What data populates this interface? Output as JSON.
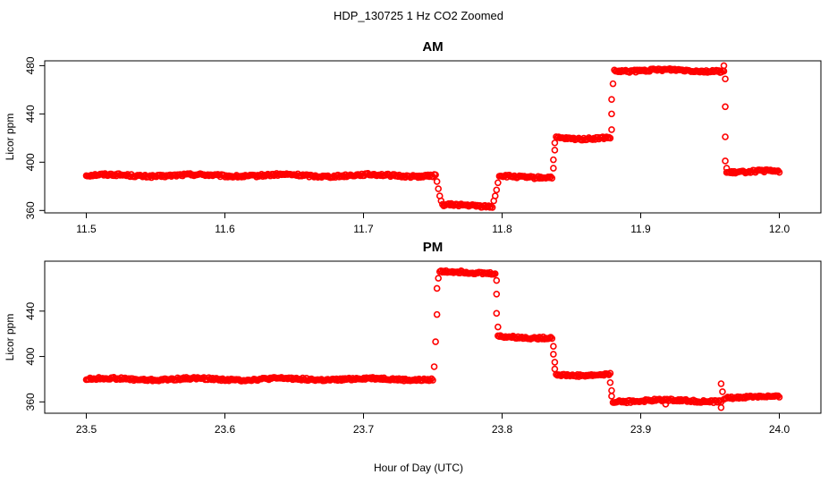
{
  "figure": {
    "suptitle": "HDP_130725  1 Hz CO2 Zoomed",
    "xlabel": "Hour of Day (UTC)",
    "marker_color": "#ff0000"
  },
  "chart_data": [
    {
      "type": "scatter",
      "title": "AM",
      "ylabel": "Licor ppm",
      "xlim": [
        11.47,
        12.03
      ],
      "ylim": [
        358,
        484
      ],
      "x_ticks": [
        11.5,
        11.6,
        11.7,
        11.8,
        11.9,
        12.0
      ],
      "x_tick_labels": [
        "11.5",
        "11.6",
        "11.7",
        "11.8",
        "11.9",
        "12.0"
      ],
      "y_ticks": [
        360,
        400,
        440,
        480
      ],
      "y_tick_labels": [
        "360",
        "400",
        "440",
        "480"
      ],
      "series": [
        {
          "segments": [
            {
              "x_start": 11.5,
              "x_end": 11.752,
              "y": 389
            },
            {
              "x_start": 11.757,
              "x_end": 11.793,
              "y": 364
            },
            {
              "x_start": 11.798,
              "x_end": 11.836,
              "y": 388
            },
            {
              "x_start": 11.839,
              "x_end": 11.878,
              "y": 420
            },
            {
              "x_start": 11.881,
              "x_end": 11.96,
              "y": 476
            },
            {
              "x_start": 11.962,
              "x_end": 12.0,
              "y": 392
            }
          ],
          "transition_points": [
            {
              "x": 11.753,
              "y": 384
            },
            {
              "x": 11.754,
              "y": 378
            },
            {
              "x": 11.755,
              "y": 372
            },
            {
              "x": 11.756,
              "y": 368
            },
            {
              "x": 11.794,
              "y": 368
            },
            {
              "x": 11.795,
              "y": 372
            },
            {
              "x": 11.796,
              "y": 377
            },
            {
              "x": 11.797,
              "y": 383
            },
            {
              "x": 11.837,
              "y": 395
            },
            {
              "x": 11.837,
              "y": 402
            },
            {
              "x": 11.838,
              "y": 410
            },
            {
              "x": 11.838,
              "y": 416
            },
            {
              "x": 11.879,
              "y": 427
            },
            {
              "x": 11.879,
              "y": 440
            },
            {
              "x": 11.879,
              "y": 452
            },
            {
              "x": 11.88,
              "y": 465
            },
            {
              "x": 11.96,
              "y": 480
            },
            {
              "x": 11.961,
              "y": 469
            },
            {
              "x": 11.961,
              "y": 446
            },
            {
              "x": 11.961,
              "y": 421
            },
            {
              "x": 11.961,
              "y": 401
            },
            {
              "x": 11.962,
              "y": 395
            }
          ]
        }
      ]
    },
    {
      "type": "scatter",
      "title": "PM",
      "ylabel": "Licor ppm",
      "xlim": [
        23.47,
        24.03
      ],
      "ylim": [
        350,
        484
      ],
      "x_ticks": [
        23.5,
        23.6,
        23.7,
        23.8,
        23.9,
        24.0
      ],
      "x_tick_labels": [
        "23.5",
        "23.6",
        "23.7",
        "23.8",
        "23.9",
        "24.0"
      ],
      "y_ticks": [
        360,
        400,
        440
      ],
      "y_tick_labels": [
        "360",
        "400",
        "440"
      ],
      "series": [
        {
          "segments": [
            {
              "x_start": 23.5,
              "x_end": 23.75,
              "y": 380
            },
            {
              "x_start": 23.755,
              "x_end": 23.795,
              "y": 474
            },
            {
              "x_start": 23.797,
              "x_end": 23.836,
              "y": 417
            },
            {
              "x_start": 23.839,
              "x_end": 23.878,
              "y": 384
            },
            {
              "x_start": 23.88,
              "x_end": 23.958,
              "y": 361
            },
            {
              "x_start": 23.96,
              "x_end": 24.0,
              "y": 364
            }
          ],
          "transition_points": [
            {
              "x": 23.751,
              "y": 391
            },
            {
              "x": 23.752,
              "y": 413
            },
            {
              "x": 23.753,
              "y": 437
            },
            {
              "x": 23.753,
              "y": 460
            },
            {
              "x": 23.754,
              "y": 469
            },
            {
              "x": 23.796,
              "y": 467
            },
            {
              "x": 23.796,
              "y": 455
            },
            {
              "x": 23.796,
              "y": 438
            },
            {
              "x": 23.797,
              "y": 426
            },
            {
              "x": 23.837,
              "y": 409
            },
            {
              "x": 23.837,
              "y": 402
            },
            {
              "x": 23.838,
              "y": 395
            },
            {
              "x": 23.838,
              "y": 389
            },
            {
              "x": 23.878,
              "y": 377
            },
            {
              "x": 23.879,
              "y": 370
            },
            {
              "x": 23.879,
              "y": 365
            },
            {
              "x": 23.958,
              "y": 376
            },
            {
              "x": 23.958,
              "y": 355
            },
            {
              "x": 23.959,
              "y": 369
            },
            {
              "x": 23.918,
              "y": 358
            }
          ]
        }
      ]
    }
  ]
}
